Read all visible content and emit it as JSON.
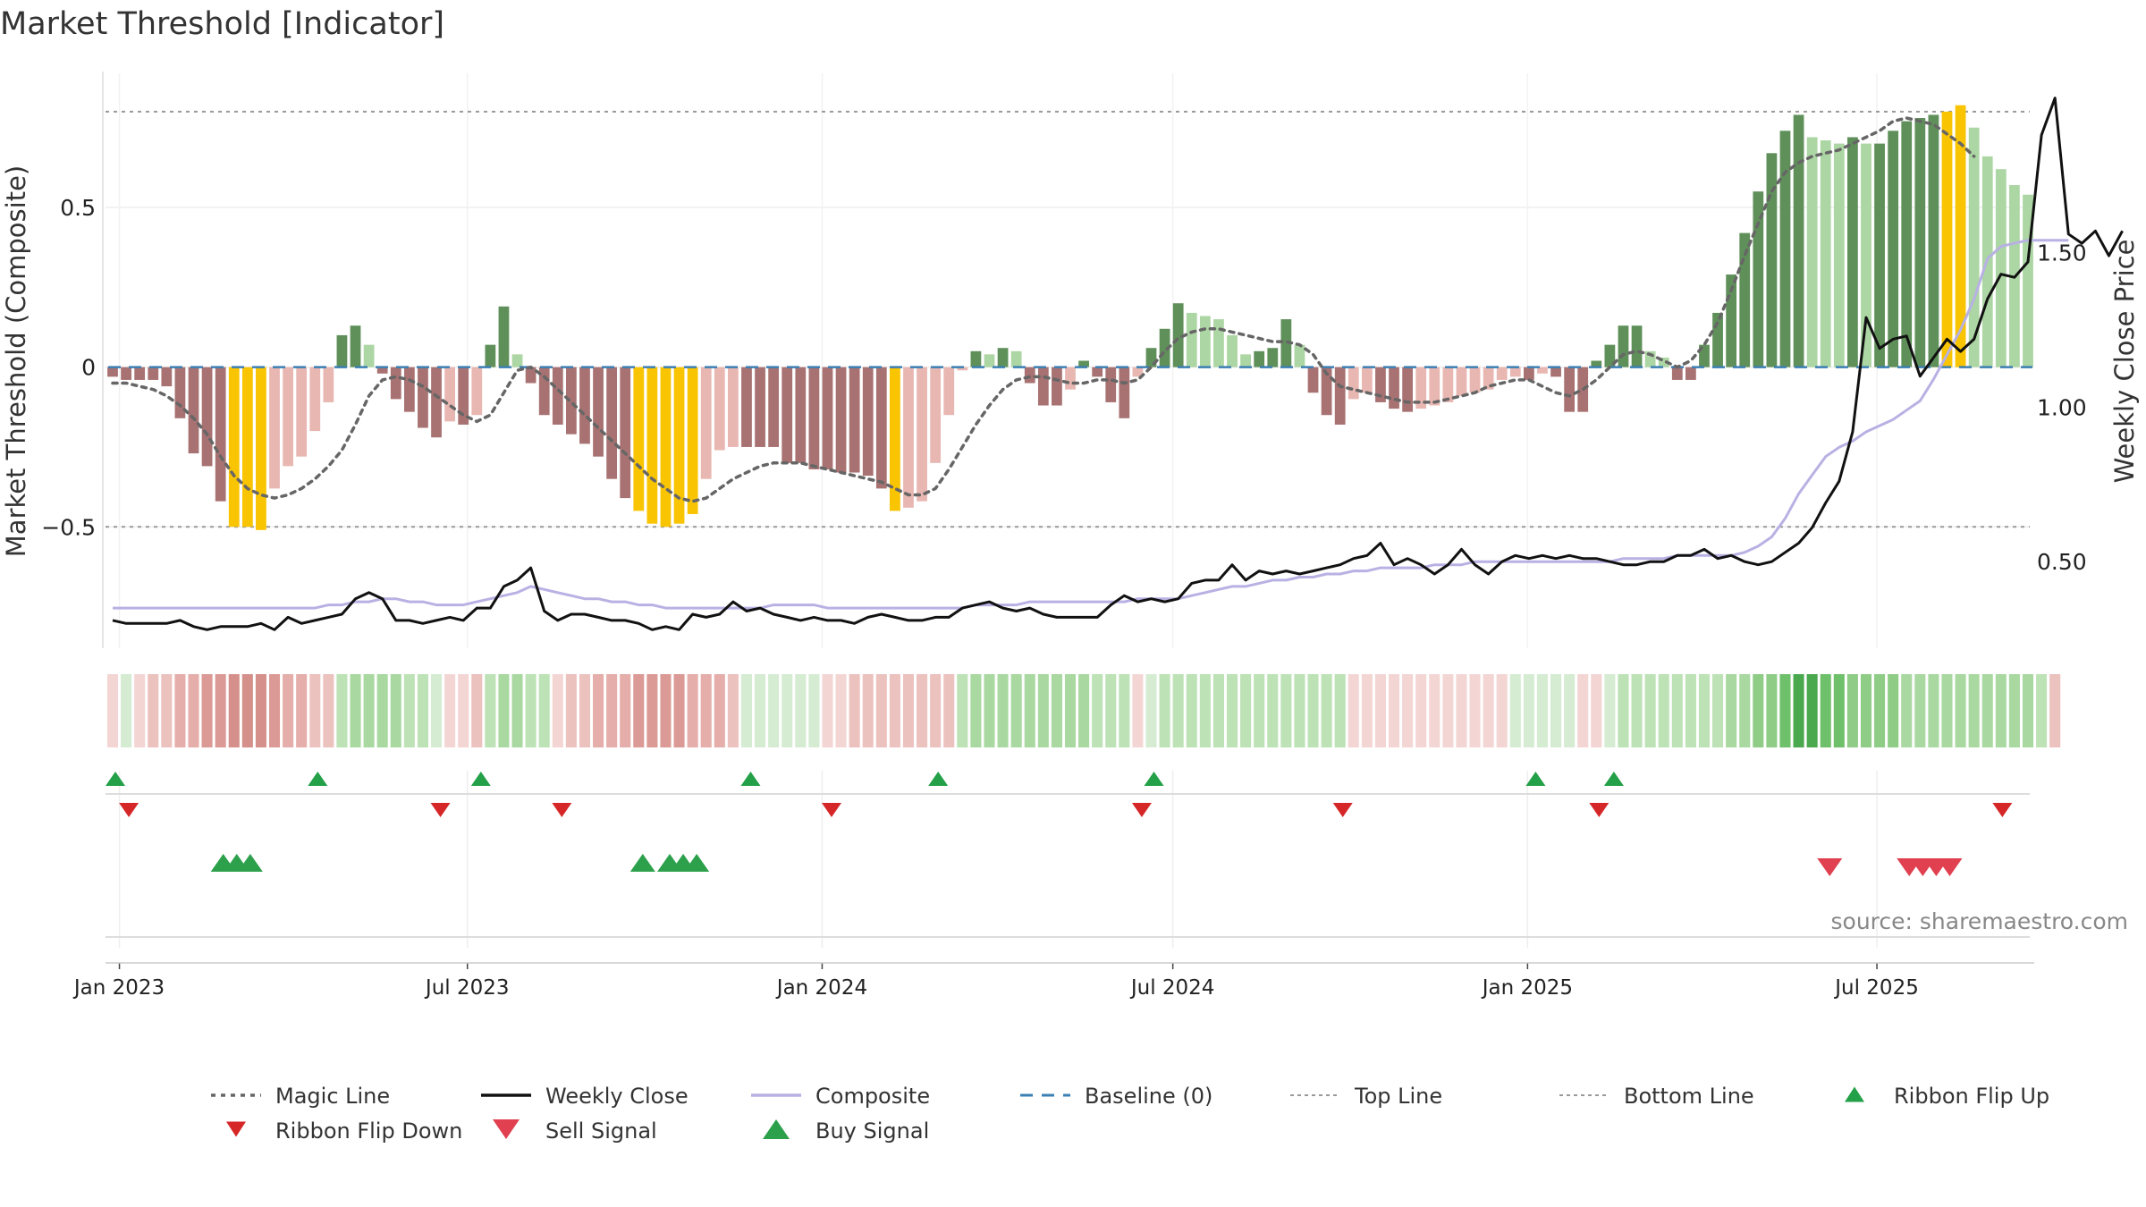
{
  "chart_data": {
    "type": "bar",
    "title": "Market Threshold [Indicator]",
    "ylabel_left": "Market Threshold (Composite)",
    "ylabel_right": "Weekly Close Price",
    "source": "source: sharemaestro.com",
    "left_axis": {
      "range": [
        -0.88,
        0.92
      ],
      "ticks": [
        {
          "v": 0.5,
          "label": "0.5"
        },
        {
          "v": 0,
          "label": "0"
        },
        {
          "v": -0.5,
          "label": "−0.5"
        }
      ]
    },
    "right_axis": {
      "range": [
        0.22,
        2.08
      ],
      "ticks": [
        {
          "v": 1.5,
          "label": "1.50"
        },
        {
          "v": 1.0,
          "label": "1.00"
        },
        {
          "v": 0.5,
          "label": "0.50"
        }
      ]
    },
    "x_ticks": [
      {
        "week": 0.5,
        "label": "Jan 2023"
      },
      {
        "week": 26.3,
        "label": "Jul 2023"
      },
      {
        "week": 52.6,
        "label": "Jan 2024"
      },
      {
        "week": 78.6,
        "label": "Jul 2024"
      },
      {
        "week": 104.9,
        "label": "Jan 2025"
      },
      {
        "week": 130.8,
        "label": "Jul 2025"
      }
    ],
    "reference_lines": {
      "top": 0.8,
      "bottom": -0.5,
      "baseline": 0
    },
    "composite": [
      -0.03,
      -0.04,
      -0.04,
      -0.04,
      -0.06,
      -0.16,
      -0.27,
      -0.31,
      -0.42,
      -0.5,
      -0.5,
      -0.51,
      -0.38,
      -0.31,
      -0.28,
      -0.2,
      -0.11,
      0.1,
      0.13,
      0.07,
      -0.02,
      -0.1,
      -0.14,
      -0.19,
      -0.22,
      -0.17,
      -0.18,
      -0.15,
      0.07,
      0.19,
      0.04,
      -0.05,
      -0.15,
      -0.18,
      -0.21,
      -0.24,
      -0.28,
      -0.35,
      -0.41,
      -0.45,
      -0.49,
      -0.5,
      -0.49,
      -0.46,
      -0.35,
      -0.26,
      -0.25,
      -0.25,
      -0.25,
      -0.25,
      -0.3,
      -0.3,
      -0.32,
      -0.32,
      -0.33,
      -0.33,
      -0.34,
      -0.38,
      -0.45,
      -0.44,
      -0.42,
      -0.3,
      -0.15,
      -0.01,
      0.05,
      0.04,
      0.06,
      0.05,
      -0.05,
      -0.12,
      -0.12,
      -0.07,
      0.02,
      -0.03,
      -0.11,
      -0.16,
      -0.03,
      0.06,
      0.12,
      0.2,
      0.17,
      0.16,
      0.15,
      0.1,
      0.04,
      0.05,
      0.06,
      0.15,
      0.07,
      -0.08,
      -0.15,
      -0.18,
      -0.1,
      -0.08,
      -0.11,
      -0.13,
      -0.14,
      -0.13,
      -0.12,
      -0.11,
      -0.09,
      -0.08,
      -0.07,
      -0.04,
      -0.03,
      -0.04,
      -0.02,
      -0.03,
      -0.14,
      -0.14,
      0.02,
      0.07,
      0.13,
      0.13,
      0.05,
      0.03,
      -0.04,
      -0.04,
      0.07,
      0.17,
      0.29,
      0.42,
      0.55,
      0.67,
      0.74,
      0.79,
      0.72,
      0.71,
      0.7,
      0.72,
      0.7,
      0.7,
      0.74,
      0.77,
      0.78,
      0.79,
      0.8,
      0.82,
      0.75,
      0.66,
      0.62,
      0.57,
      0.54
    ],
    "bar_colors": {
      "neg_light": "#e8b7b2",
      "neg_dark": "#a87272",
      "pos_light": "#acd6a3",
      "pos_dark": "#5f905a",
      "extreme": "#f9c402"
    },
    "magic_line": [
      -0.05,
      -0.05,
      -0.06,
      -0.07,
      -0.09,
      -0.12,
      -0.16,
      -0.21,
      -0.28,
      -0.34,
      -0.38,
      -0.4,
      -0.41,
      -0.4,
      -0.38,
      -0.35,
      -0.31,
      -0.26,
      -0.18,
      -0.09,
      -0.04,
      -0.03,
      -0.04,
      -0.06,
      -0.09,
      -0.12,
      -0.15,
      -0.17,
      -0.15,
      -0.08,
      -0.01,
      0.0,
      -0.03,
      -0.07,
      -0.11,
      -0.15,
      -0.19,
      -0.23,
      -0.27,
      -0.31,
      -0.35,
      -0.38,
      -0.41,
      -0.42,
      -0.41,
      -0.38,
      -0.35,
      -0.33,
      -0.31,
      -0.3,
      -0.3,
      -0.3,
      -0.31,
      -0.32,
      -0.33,
      -0.34,
      -0.35,
      -0.36,
      -0.38,
      -0.4,
      -0.4,
      -0.38,
      -0.32,
      -0.25,
      -0.18,
      -0.12,
      -0.07,
      -0.04,
      -0.03,
      -0.03,
      -0.04,
      -0.05,
      -0.05,
      -0.04,
      -0.04,
      -0.05,
      -0.04,
      0.0,
      0.05,
      0.09,
      0.11,
      0.12,
      0.12,
      0.11,
      0.1,
      0.09,
      0.08,
      0.08,
      0.07,
      0.04,
      -0.02,
      -0.06,
      -0.07,
      -0.08,
      -0.09,
      -0.1,
      -0.11,
      -0.11,
      -0.11,
      -0.1,
      -0.09,
      -0.08,
      -0.06,
      -0.05,
      -0.04,
      -0.04,
      -0.06,
      -0.08,
      -0.09,
      -0.07,
      -0.04,
      0.0,
      0.04,
      0.05,
      0.04,
      0.02,
      0.0,
      0.02,
      0.07,
      0.14,
      0.24,
      0.35,
      0.45,
      0.55,
      0.61,
      0.64,
      0.66,
      0.67,
      0.68,
      0.7,
      0.72,
      0.74,
      0.77,
      0.78,
      0.77,
      0.76,
      0.73,
      0.7,
      0.66
    ],
    "weekly_close": [
      0.31,
      0.3,
      0.3,
      0.3,
      0.3,
      0.31,
      0.29,
      0.28,
      0.29,
      0.29,
      0.29,
      0.3,
      0.28,
      0.32,
      0.3,
      0.31,
      0.32,
      0.33,
      0.38,
      0.4,
      0.38,
      0.31,
      0.31,
      0.3,
      0.31,
      0.32,
      0.31,
      0.35,
      0.35,
      0.42,
      0.44,
      0.48,
      0.34,
      0.31,
      0.33,
      0.33,
      0.32,
      0.31,
      0.31,
      0.3,
      0.28,
      0.29,
      0.28,
      0.33,
      0.32,
      0.33,
      0.37,
      0.34,
      0.35,
      0.33,
      0.32,
      0.31,
      0.32,
      0.31,
      0.31,
      0.3,
      0.32,
      0.33,
      0.32,
      0.31,
      0.31,
      0.32,
      0.32,
      0.35,
      0.36,
      0.37,
      0.35,
      0.34,
      0.35,
      0.33,
      0.32,
      0.32,
      0.32,
      0.32,
      0.36,
      0.39,
      0.37,
      0.38,
      0.37,
      0.38,
      0.43,
      0.44,
      0.44,
      0.49,
      0.44,
      0.47,
      0.46,
      0.47,
      0.46,
      0.47,
      0.48,
      0.49,
      0.51,
      0.52,
      0.56,
      0.49,
      0.51,
      0.49,
      0.46,
      0.49,
      0.54,
      0.49,
      0.46,
      0.5,
      0.52,
      0.51,
      0.52,
      0.51,
      0.52,
      0.51,
      0.51,
      0.5,
      0.49,
      0.49,
      0.5,
      0.5,
      0.52,
      0.52,
      0.54,
      0.51,
      0.52,
      0.5,
      0.49,
      0.5,
      0.53,
      0.56,
      0.61,
      0.69,
      0.76,
      0.92,
      1.29,
      1.19,
      1.22,
      1.23,
      1.1,
      1.16,
      1.22,
      1.18,
      1.22,
      1.35,
      1.43,
      1.42,
      1.47,
      1.88,
      2.0,
      1.56,
      1.53,
      1.57,
      1.49,
      1.57
    ],
    "composite_price_line": [
      0.35,
      0.35,
      0.35,
      0.35,
      0.35,
      0.35,
      0.35,
      0.35,
      0.35,
      0.35,
      0.35,
      0.35,
      0.35,
      0.35,
      0.35,
      0.35,
      0.36,
      0.36,
      0.37,
      0.37,
      0.38,
      0.38,
      0.37,
      0.37,
      0.36,
      0.36,
      0.36,
      0.37,
      0.38,
      0.39,
      0.4,
      0.42,
      0.41,
      0.4,
      0.39,
      0.38,
      0.38,
      0.37,
      0.37,
      0.36,
      0.36,
      0.35,
      0.35,
      0.35,
      0.35,
      0.35,
      0.35,
      0.35,
      0.35,
      0.36,
      0.36,
      0.36,
      0.36,
      0.35,
      0.35,
      0.35,
      0.35,
      0.35,
      0.35,
      0.35,
      0.35,
      0.35,
      0.35,
      0.35,
      0.36,
      0.36,
      0.36,
      0.36,
      0.37,
      0.37,
      0.37,
      0.37,
      0.37,
      0.37,
      0.37,
      0.37,
      0.38,
      0.38,
      0.38,
      0.38,
      0.39,
      0.4,
      0.41,
      0.42,
      0.42,
      0.43,
      0.44,
      0.44,
      0.45,
      0.45,
      0.46,
      0.46,
      0.47,
      0.47,
      0.48,
      0.48,
      0.48,
      0.48,
      0.49,
      0.49,
      0.49,
      0.5,
      0.5,
      0.5,
      0.5,
      0.5,
      0.5,
      0.5,
      0.5,
      0.5,
      0.5,
      0.5,
      0.51,
      0.51,
      0.51,
      0.51,
      0.52,
      0.52,
      0.52,
      0.52,
      0.52,
      0.53,
      0.55,
      0.58,
      0.64,
      0.72,
      0.78,
      0.84,
      0.87,
      0.89,
      0.92,
      0.94,
      0.96,
      0.99,
      1.02,
      1.09,
      1.17,
      1.25,
      1.35,
      1.48,
      1.52,
      1.53,
      1.54,
      1.54,
      1.54,
      1.54
    ],
    "ribbon_colors": [
      "#f3d6d4",
      "#d5ecd2",
      "#f3d6d4",
      "#ecc2bf",
      "#ecc2bf",
      "#e5aeaa",
      "#e5aeaa",
      "#dc9a96",
      "#dc9a96",
      "#d6908b",
      "#d6908b",
      "#d6908b",
      "#dc9a96",
      "#e5aeaa",
      "#e5aeaa",
      "#ecc2bf",
      "#ecc2bf",
      "#bde2b6",
      "#a9d9a1",
      "#a9d9a1",
      "#a9d9a1",
      "#a9d9a1",
      "#bde2b6",
      "#bde2b6",
      "#d5ecd2",
      "#f3d6d4",
      "#f3d6d4",
      "#ecc2bf",
      "#bde2b6",
      "#a9d9a1",
      "#a9d9a1",
      "#bde2b6",
      "#bde2b6",
      "#f3d6d4",
      "#ecc2bf",
      "#ecc2bf",
      "#e5aeaa",
      "#e5aeaa",
      "#e5aeaa",
      "#dc9a96",
      "#dc9a96",
      "#dc9a96",
      "#dc9a96",
      "#e5aeaa",
      "#e5aeaa",
      "#e5aeaa",
      "#ecc2bf",
      "#d5ecd2",
      "#d5ecd2",
      "#d5ecd2",
      "#d5ecd2",
      "#d5ecd2",
      "#d5ecd2",
      "#f3d6d4",
      "#f3d6d4",
      "#ecc2bf",
      "#ecc2bf",
      "#ecc2bf",
      "#ecc2bf",
      "#ecc2bf",
      "#ecc2bf",
      "#ecc2bf",
      "#ecc2bf",
      "#bde2b6",
      "#a9d9a1",
      "#a9d9a1",
      "#a9d9a1",
      "#a9d9a1",
      "#a9d9a1",
      "#a9d9a1",
      "#a9d9a1",
      "#a9d9a1",
      "#a9d9a1",
      "#bde2b6",
      "#bde2b6",
      "#bde2b6",
      "#f3d6d4",
      "#d5ecd2",
      "#bde2b6",
      "#bde2b6",
      "#bde2b6",
      "#bde2b6",
      "#bde2b6",
      "#bde2b6",
      "#bde2b6",
      "#bde2b6",
      "#bde2b6",
      "#bde2b6",
      "#bde2b6",
      "#bde2b6",
      "#bde2b6",
      "#bde2b6",
      "#f3d6d4",
      "#f3d6d4",
      "#f3d6d4",
      "#f3d6d4",
      "#f3d6d4",
      "#f3d6d4",
      "#f3d6d4",
      "#f3d6d4",
      "#f3d6d4",
      "#f3d6d4",
      "#f3d6d4",
      "#f3d6d4",
      "#d5ecd2",
      "#d5ecd2",
      "#d5ecd2",
      "#d5ecd2",
      "#d5ecd2",
      "#f3d6d4",
      "#f3d6d4",
      "#d5ecd2",
      "#bde2b6",
      "#bde2b6",
      "#bde2b6",
      "#bde2b6",
      "#bde2b6",
      "#bde2b6",
      "#bde2b6",
      "#bde2b6",
      "#a9d9a1",
      "#a9d9a1",
      "#8fcd87",
      "#8fcd87",
      "#6fc06a",
      "#4aa84f",
      "#4aa84f",
      "#6fc06a",
      "#6fc06a",
      "#8fcd87",
      "#8fcd87",
      "#8fcd87",
      "#8fcd87",
      "#a9d9a1",
      "#a9d9a1",
      "#a9d9a1",
      "#a9d9a1",
      "#a9d9a1",
      "#a9d9a1",
      "#a9d9a1",
      "#a9d9a1",
      "#a9d9a1",
      "#a9d9a1",
      "#bde2b6",
      "#ecc2bf"
    ],
    "ribbon_flip_up": [
      0.2,
      15.2,
      27.3,
      47.3,
      61.2,
      77.2,
      105.5,
      111.3
    ],
    "ribbon_flip_down": [
      1.2,
      24.3,
      33.3,
      53.3,
      76.3,
      91.2,
      110.2,
      140.1
    ],
    "buy_signal": [
      8.2,
      9.2,
      10.2,
      39.3,
      41.3,
      42.3,
      43.3
    ],
    "sell_signal": [
      127.3,
      133.2,
      134.2,
      135.2,
      136.2
    ],
    "legend": [
      {
        "label": "Magic Line",
        "kind": "dotted-line",
        "color": "#666666"
      },
      {
        "label": "Weekly Close",
        "kind": "solid-line",
        "color": "#111111"
      },
      {
        "label": "Composite",
        "kind": "solid-line",
        "color": "#b8b1e3"
      },
      {
        "label": "Baseline (0)",
        "kind": "dashed-line",
        "color": "#3b7fb3"
      },
      {
        "label": "Top Line",
        "kind": "fine-dotted-line",
        "color": "#999999"
      },
      {
        "label": "Bottom Line",
        "kind": "fine-dotted-line",
        "color": "#999999"
      },
      {
        "label": "Ribbon Flip Up",
        "kind": "triangle-up",
        "color": "#23a048"
      },
      {
        "label": "Ribbon Flip Down",
        "kind": "triangle-down",
        "color": "#d62728"
      },
      {
        "label": "Sell Signal",
        "kind": "triangle-down-large",
        "color": "#e0404f"
      },
      {
        "label": "Buy Signal",
        "kind": "triangle-up-large",
        "color": "#2ca04a"
      }
    ]
  }
}
